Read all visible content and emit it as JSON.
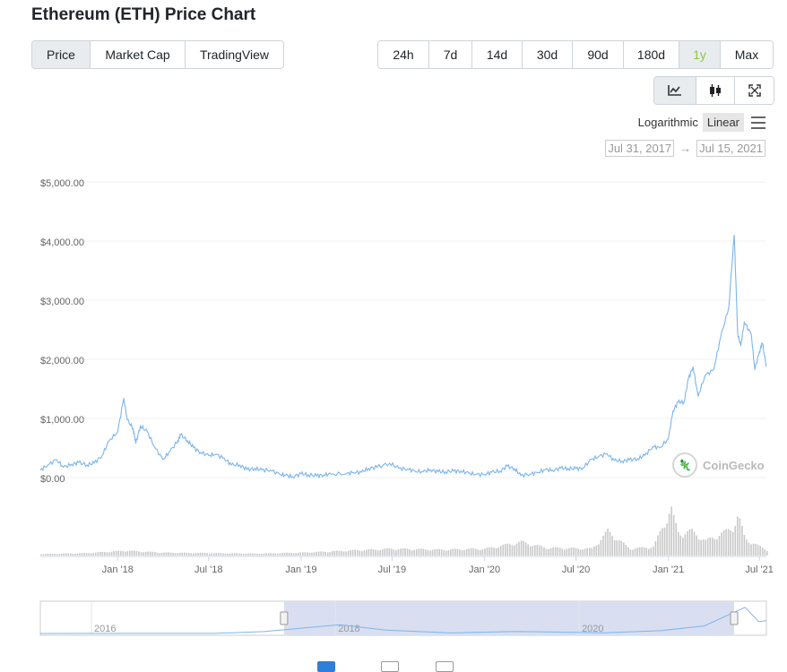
{
  "page": {
    "title": "Ethereum (ETH) Price Chart"
  },
  "tabs": [
    {
      "label": "Price",
      "active": true
    },
    {
      "label": "Market Cap",
      "active": false
    },
    {
      "label": "TradingView",
      "active": false
    }
  ],
  "ranges": [
    {
      "label": "24h",
      "active": false
    },
    {
      "label": "7d",
      "active": false
    },
    {
      "label": "14d",
      "active": false
    },
    {
      "label": "30d",
      "active": false
    },
    {
      "label": "90d",
      "active": false
    },
    {
      "label": "180d",
      "active": false
    },
    {
      "label": "1y",
      "active": true
    },
    {
      "label": "Max",
      "active": false
    }
  ],
  "chart_tools": [
    {
      "icon": "line-chart-icon",
      "active": true
    },
    {
      "icon": "candlestick-icon",
      "active": false
    },
    {
      "icon": "fullscreen-icon",
      "active": false
    }
  ],
  "scale": {
    "log_label": "Logarithmic",
    "linear_label": "Linear",
    "selected": "Linear",
    "menu_icon": "hamburger-menu-icon"
  },
  "date_range": {
    "from": "Jul 31, 2017",
    "arrow": "→",
    "to": "Jul 15, 2021"
  },
  "watermark": {
    "text": "CoinGecko"
  },
  "colors": {
    "line": "#7cb5ec",
    "navigator_fill": "#d9dff0",
    "accent": "#8dc647"
  },
  "chart_data": {
    "type": "line",
    "series": [
      {
        "values": [
          [
            "2017-07-31",
            200
          ],
          [
            "2017-08-15",
            290
          ],
          [
            "2017-09-01",
            380
          ],
          [
            "2017-09-15",
            250
          ],
          [
            "2017-10-01",
            300
          ],
          [
            "2017-10-15",
            330
          ],
          [
            "2017-11-01",
            290
          ],
          [
            "2017-11-15",
            320
          ],
          [
            "2017-12-01",
            450
          ],
          [
            "2017-12-15",
            700
          ],
          [
            "2018-01-01",
            850
          ],
          [
            "2018-01-13",
            1420
          ],
          [
            "2018-01-20",
            1050
          ],
          [
            "2018-02-01",
            900
          ],
          [
            "2018-02-06",
            650
          ],
          [
            "2018-02-15",
            950
          ],
          [
            "2018-03-01",
            850
          ],
          [
            "2018-03-15",
            600
          ],
          [
            "2018-04-01",
            380
          ],
          [
            "2018-04-15",
            520
          ],
          [
            "2018-05-01",
            700
          ],
          [
            "2018-05-06",
            800
          ],
          [
            "2018-05-20",
            700
          ],
          [
            "2018-06-01",
            580
          ],
          [
            "2018-06-15",
            500
          ],
          [
            "2018-07-01",
            450
          ],
          [
            "2018-07-15",
            470
          ],
          [
            "2018-08-01",
            400
          ],
          [
            "2018-08-15",
            290
          ],
          [
            "2018-09-01",
            290
          ],
          [
            "2018-09-15",
            210
          ],
          [
            "2018-10-01",
            230
          ],
          [
            "2018-10-15",
            205
          ],
          [
            "2018-11-01",
            200
          ],
          [
            "2018-11-20",
            130
          ],
          [
            "2018-12-01",
            115
          ],
          [
            "2018-12-15",
            90
          ],
          [
            "2019-01-01",
            140
          ],
          [
            "2019-01-15",
            125
          ],
          [
            "2019-02-01",
            105
          ],
          [
            "2019-02-15",
            120
          ],
          [
            "2019-03-01",
            135
          ],
          [
            "2019-04-01",
            140
          ],
          [
            "2019-04-15",
            165
          ],
          [
            "2019-05-01",
            165
          ],
          [
            "2019-05-15",
            230
          ],
          [
            "2019-06-01",
            250
          ],
          [
            "2019-06-26",
            320
          ],
          [
            "2019-07-15",
            230
          ],
          [
            "2019-08-01",
            220
          ],
          [
            "2019-08-15",
            185
          ],
          [
            "2019-09-01",
            175
          ],
          [
            "2019-09-15",
            210
          ],
          [
            "2019-10-01",
            175
          ],
          [
            "2019-10-15",
            175
          ],
          [
            "2019-11-01",
            185
          ],
          [
            "2019-11-15",
            185
          ],
          [
            "2019-12-01",
            150
          ],
          [
            "2019-12-15",
            130
          ],
          [
            "2020-01-01",
            130
          ],
          [
            "2020-01-15",
            165
          ],
          [
            "2020-02-01",
            185
          ],
          [
            "2020-02-15",
            270
          ],
          [
            "2020-03-01",
            225
          ],
          [
            "2020-03-13",
            110
          ],
          [
            "2020-04-01",
            135
          ],
          [
            "2020-04-15",
            160
          ],
          [
            "2020-05-01",
            210
          ],
          [
            "2020-05-15",
            200
          ],
          [
            "2020-06-01",
            235
          ],
          [
            "2020-06-15",
            230
          ],
          [
            "2020-07-01",
            225
          ],
          [
            "2020-07-15",
            240
          ],
          [
            "2020-08-01",
            385
          ],
          [
            "2020-08-15",
            430
          ],
          [
            "2020-09-01",
            480
          ],
          [
            "2020-09-15",
            365
          ],
          [
            "2020-10-01",
            355
          ],
          [
            "2020-10-15",
            375
          ],
          [
            "2020-11-01",
            395
          ],
          [
            "2020-11-15",
            450
          ],
          [
            "2020-12-01",
            600
          ],
          [
            "2020-12-15",
            580
          ],
          [
            "2021-01-01",
            730
          ],
          [
            "2021-01-10",
            1200
          ],
          [
            "2021-01-20",
            1350
          ],
          [
            "2021-02-01",
            1350
          ],
          [
            "2021-02-10",
            1750
          ],
          [
            "2021-02-19",
            1950
          ],
          [
            "2021-03-01",
            1450
          ],
          [
            "2021-03-15",
            1800
          ],
          [
            "2021-04-01",
            1900
          ],
          [
            "2021-04-15",
            2450
          ],
          [
            "2021-05-01",
            2950
          ],
          [
            "2021-05-12",
            4180
          ],
          [
            "2021-05-19",
            2500
          ],
          [
            "2021-05-25",
            2300
          ],
          [
            "2021-06-01",
            2700
          ],
          [
            "2021-06-15",
            2500
          ],
          [
            "2021-06-22",
            1900
          ],
          [
            "2021-07-01",
            2200
          ],
          [
            "2021-07-07",
            2350
          ],
          [
            "2021-07-15",
            1950
          ]
        ]
      }
    ],
    "ylim": [
      0,
      5000
    ],
    "y_ticks": [
      {
        "value": 0,
        "label": "$0.00"
      },
      {
        "value": 1000,
        "label": "$1,000.00"
      },
      {
        "value": 2000,
        "label": "$2,000.00"
      },
      {
        "value": 3000,
        "label": "$3,000.00"
      },
      {
        "value": 4000,
        "label": "$4,000.00"
      },
      {
        "value": 5000,
        "label": "$5,000.00"
      }
    ],
    "x_range": [
      "2017-07-31",
      "2021-07-15"
    ],
    "x_ticks": [
      {
        "date": "2018-01-01",
        "label": "Jan '18"
      },
      {
        "date": "2018-07-01",
        "label": "Jul '18"
      },
      {
        "date": "2019-01-01",
        "label": "Jan '19"
      },
      {
        "date": "2019-07-01",
        "label": "Jul '19"
      },
      {
        "date": "2020-01-01",
        "label": "Jan '20"
      },
      {
        "date": "2020-07-01",
        "label": "Jul '20"
      },
      {
        "date": "2021-01-01",
        "label": "Jan '21"
      },
      {
        "date": "2021-07-01",
        "label": "Jul '21"
      }
    ],
    "volume": {
      "values": [
        [
          "2017-08-01",
          0.03
        ],
        [
          "2017-11-01",
          0.05
        ],
        [
          "2018-01-15",
          0.1
        ],
        [
          "2018-04-01",
          0.06
        ],
        [
          "2018-07-01",
          0.05
        ],
        [
          "2018-10-01",
          0.04
        ],
        [
          "2019-01-01",
          0.06
        ],
        [
          "2019-04-01",
          0.1
        ],
        [
          "2019-07-01",
          0.14
        ],
        [
          "2019-10-01",
          0.12
        ],
        [
          "2020-01-01",
          0.14
        ],
        [
          "2020-03-13",
          0.28
        ],
        [
          "2020-05-01",
          0.16
        ],
        [
          "2020-08-01",
          0.14
        ],
        [
          "2020-09-01",
          0.5
        ],
        [
          "2020-10-15",
          0.14
        ],
        [
          "2020-12-01",
          0.18
        ],
        [
          "2021-01-04",
          0.95
        ],
        [
          "2021-01-20",
          0.45
        ],
        [
          "2021-02-15",
          0.5
        ],
        [
          "2021-03-15",
          0.3
        ],
        [
          "2021-04-15",
          0.45
        ],
        [
          "2021-05-05",
          0.55
        ],
        [
          "2021-05-19",
          0.8
        ],
        [
          "2021-06-01",
          0.35
        ],
        [
          "2021-07-01",
          0.18
        ],
        [
          "2021-07-15",
          0.12
        ]
      ]
    },
    "navigator": {
      "x_range": [
        "2015-08-01",
        "2021-07-15"
      ],
      "labels": [
        {
          "date": "2016-01-01",
          "label": "2016"
        },
        {
          "date": "2018-01-01",
          "label": "2018"
        },
        {
          "date": "2020-01-01",
          "label": "2020"
        }
      ],
      "window": [
        "2017-07-31",
        "2021-07-15"
      ],
      "values": [
        [
          "2015-08-01",
          3
        ],
        [
          "2016-06-01",
          14
        ],
        [
          "2017-01-01",
          10
        ],
        [
          "2017-06-01",
          300
        ],
        [
          "2018-01-13",
          1400
        ],
        [
          "2018-06-01",
          550
        ],
        [
          "2018-12-15",
          90
        ],
        [
          "2019-06-26",
          320
        ],
        [
          "2020-03-13",
          110
        ],
        [
          "2020-09-01",
          450
        ],
        [
          "2021-01-10",
          1200
        ],
        [
          "2021-05-12",
          4180
        ],
        [
          "2021-06-22",
          1900
        ],
        [
          "2021-07-15",
          2050
        ]
      ],
      "ymax": 4300
    }
  }
}
